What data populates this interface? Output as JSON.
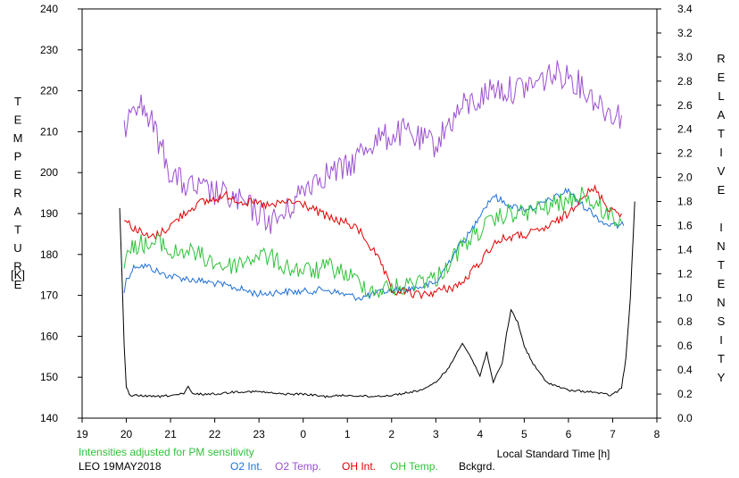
{
  "chart_data": {
    "type": "line",
    "left_axis_label": "TEMPERATURE",
    "left_axis_unit": "[K]",
    "right_axis_label": "RELATIVE INTENSITY",
    "xlabel": "Local Standard Time [h]",
    "note": "Intensities adjusted for PM sensitivity",
    "station_date": "LEO 19MAY2018",
    "x_ticks": [
      "19",
      "20",
      "21",
      "22",
      "23",
      "0",
      "1",
      "2",
      "3",
      "4",
      "5",
      "6",
      "7",
      "8"
    ],
    "x_range_hours": [
      19,
      32
    ],
    "temp_ticks": [
      "140",
      "150",
      "160",
      "170",
      "180",
      "190",
      "200",
      "210",
      "220",
      "230",
      "240"
    ],
    "ylim_temperature": [
      140,
      240
    ],
    "intensity_ticks": [
      "0.0",
      "0.2",
      "0.4",
      "0.6",
      "0.8",
      "1.0",
      "1.2",
      "1.4",
      "1.6",
      "1.8",
      "2.0",
      "2.2",
      "2.4",
      "2.6",
      "2.8",
      "3.0",
      "3.2",
      "3.4"
    ],
    "ylim_intensity": [
      0,
      3.4
    ],
    "series": [
      {
        "name": "O2 Int.",
        "color": "#1f6fd6",
        "axis": "intensity",
        "x": [
          19.95,
          20.0,
          20.2,
          20.5,
          20.8,
          21.0,
          21.5,
          22.0,
          22.5,
          23.0,
          23.5,
          24.0,
          24.5,
          25.0,
          25.3,
          25.5,
          25.8,
          26.0,
          26.5,
          27.0,
          27.3,
          27.5,
          27.8,
          28.0,
          28.3,
          28.5,
          28.8,
          29.0,
          29.3,
          29.5,
          29.8,
          30.0,
          30.2,
          30.5,
          30.8,
          31.0,
          31.25
        ],
        "y": [
          1.05,
          1.15,
          1.27,
          1.26,
          1.2,
          1.18,
          1.15,
          1.12,
          1.08,
          1.03,
          1.05,
          1.05,
          1.07,
          1.02,
          1.0,
          1.02,
          1.05,
          1.06,
          1.08,
          1.12,
          1.3,
          1.42,
          1.55,
          1.7,
          1.85,
          1.8,
          1.75,
          1.74,
          1.76,
          1.8,
          1.85,
          1.9,
          1.8,
          1.72,
          1.62,
          1.6,
          1.6
        ]
      },
      {
        "name": "O2 Temp.",
        "color": "#9b4fd1",
        "axis": "temperature",
        "x": [
          19.95,
          20.1,
          20.3,
          20.5,
          20.8,
          21.0,
          21.3,
          21.6,
          22.0,
          22.3,
          22.7,
          23.0,
          23.3,
          23.6,
          24.0,
          24.3,
          24.6,
          25.0,
          25.3,
          25.6,
          26.0,
          26.3,
          26.6,
          27.0,
          27.3,
          27.6,
          28.0,
          28.3,
          28.6,
          29.0,
          29.3,
          29.6,
          30.0,
          30.3,
          30.6,
          30.9,
          31.2
        ],
        "y": [
          210,
          218,
          217,
          214,
          206,
          200,
          197,
          196,
          195,
          194,
          192,
          190,
          188,
          190,
          196,
          199,
          200,
          201,
          205,
          208,
          209,
          210,
          208,
          207,
          212,
          216,
          218,
          221,
          220,
          221,
          222,
          224,
          224,
          221,
          218,
          215,
          214
        ]
      },
      {
        "name": "OH Int.",
        "color": "#e00000",
        "axis": "intensity",
        "x": [
          19.95,
          20.1,
          20.3,
          20.5,
          20.7,
          21.0,
          21.3,
          21.6,
          22.0,
          22.3,
          22.6,
          23.0,
          23.3,
          23.6,
          24.0,
          24.3,
          24.6,
          25.0,
          25.3,
          25.6,
          25.8,
          26.0,
          26.3,
          26.6,
          27.0,
          27.3,
          27.6,
          28.0,
          28.3,
          28.6,
          29.0,
          29.3,
          29.6,
          30.0,
          30.3,
          30.6,
          30.9,
          31.2
        ],
        "y": [
          1.65,
          1.6,
          1.55,
          1.5,
          1.52,
          1.6,
          1.7,
          1.78,
          1.82,
          1.85,
          1.8,
          1.78,
          1.76,
          1.8,
          1.78,
          1.72,
          1.66,
          1.62,
          1.55,
          1.38,
          1.25,
          1.05,
          1.05,
          1.02,
          1.05,
          1.08,
          1.12,
          1.3,
          1.45,
          1.5,
          1.52,
          1.55,
          1.6,
          1.7,
          1.85,
          1.9,
          1.75,
          1.7
        ]
      },
      {
        "name": "OH Temp.",
        "color": "#2ec23a",
        "axis": "temperature",
        "x": [
          19.95,
          20.1,
          20.3,
          20.5,
          20.8,
          21.0,
          21.3,
          21.6,
          22.0,
          22.3,
          22.6,
          23.0,
          23.3,
          23.6,
          24.0,
          24.3,
          24.6,
          25.0,
          25.3,
          25.6,
          26.0,
          26.3,
          26.6,
          27.0,
          27.3,
          27.6,
          28.0,
          28.3,
          28.6,
          29.0,
          29.3,
          29.6,
          30.0,
          30.3,
          30.6,
          30.9,
          31.2
        ],
        "y": [
          178,
          181,
          183,
          182,
          183,
          180,
          181,
          180,
          178,
          177,
          178,
          180,
          179,
          177,
          176,
          176,
          177,
          175,
          173,
          171,
          172,
          172,
          174,
          174,
          178,
          182,
          186,
          188,
          190,
          190,
          191,
          192,
          193,
          195,
          192,
          190,
          188
        ]
      },
      {
        "name": "Bckgrd.",
        "color": "#000000",
        "axis": "intensity",
        "x": [
          19.85,
          19.9,
          19.95,
          20.0,
          20.1,
          20.3,
          20.5,
          20.8,
          21.0,
          21.3,
          21.4,
          21.5,
          22.0,
          22.5,
          23.0,
          23.5,
          24.0,
          24.5,
          25.0,
          25.5,
          26.0,
          26.5,
          26.8,
          27.0,
          27.3,
          27.6,
          27.8,
          28.0,
          28.15,
          28.3,
          28.5,
          28.6,
          28.7,
          28.85,
          29.0,
          29.2,
          29.5,
          30.0,
          30.5,
          30.8,
          30.95,
          31.1,
          31.2,
          31.3,
          31.4,
          31.5
        ],
        "y": [
          1.75,
          1.2,
          0.6,
          0.25,
          0.18,
          0.19,
          0.18,
          0.18,
          0.19,
          0.2,
          0.26,
          0.2,
          0.2,
          0.22,
          0.22,
          0.2,
          0.2,
          0.18,
          0.19,
          0.18,
          0.19,
          0.22,
          0.25,
          0.3,
          0.42,
          0.63,
          0.5,
          0.35,
          0.55,
          0.3,
          0.45,
          0.7,
          0.9,
          0.8,
          0.6,
          0.45,
          0.3,
          0.23,
          0.22,
          0.2,
          0.19,
          0.22,
          0.25,
          0.5,
          1.0,
          1.8
        ]
      }
    ],
    "grid": false,
    "legend_position": "bottom"
  }
}
